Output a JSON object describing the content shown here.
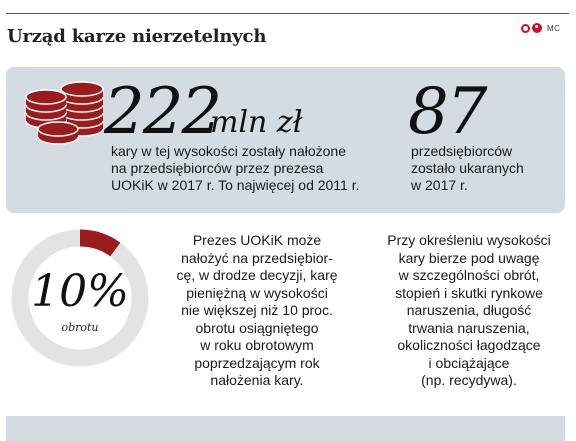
{
  "header": {
    "title": "Urząd karze nierzetelnych",
    "brand": "MC"
  },
  "stats": {
    "amount_value": "222",
    "amount_unit": "mln zł",
    "amount_desc_lines": [
      "kary w tej wysokości zostały nałożone",
      "na przedsiębiorców przez prezesa",
      "UOKiK w 2017 r. To najwięcej od 2011 r."
    ],
    "count_value": "87",
    "count_desc_lines": [
      "przedsiębiorców",
      "zostało ukaranych",
      "w 2017 r."
    ]
  },
  "ratio": {
    "value": "10%",
    "label": "obrotu",
    "fraction": 0.1,
    "colors": {
      "filled": "#9b1c1c",
      "track": "#e3e3e3"
    }
  },
  "column_left_lines": [
    "Prezes UOKiK może",
    "nałożyć na przedsiębior-",
    "cę, w drodze decyzji, karę",
    "pieniężną w wysokości",
    "nie większej niż 10 proc.",
    "obrotu osiągniętego",
    "w roku obrotowym",
    "poprzedzającym rok",
    "nałożenia kary."
  ],
  "column_right_lines": [
    "Przy określeniu wysokości",
    "kary bierze pod uwagę",
    "w szczególności obrót,",
    "stopień i skutki rynkowe",
    "naruszenia, długość",
    "trwania naruszenia,",
    "okoliczności łagodzące",
    "i obciążające",
    "(np. recydywa)."
  ],
  "colors": {
    "accent": "#9b1c1c",
    "panel": "#d3dce2",
    "brand_red": "#c9102a"
  }
}
